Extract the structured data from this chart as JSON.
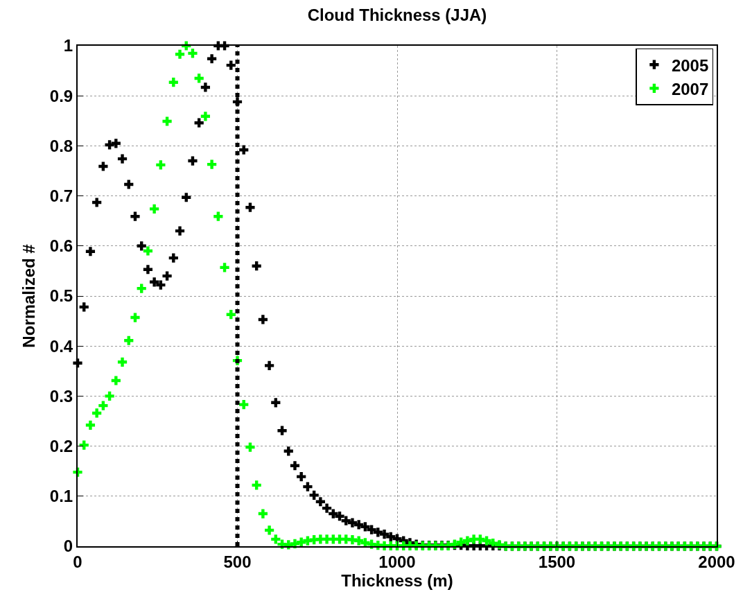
{
  "chart_data": {
    "type": "scatter",
    "title": "Cloud Thickness (JJA)",
    "xlabel": "Thickness (m)",
    "ylabel": "Normalized #",
    "x": [
      0,
      20,
      40,
      60,
      80,
      100,
      120,
      140,
      160,
      180,
      200,
      220,
      240,
      260,
      280,
      300,
      320,
      340,
      360,
      380,
      400,
      420,
      440,
      460,
      480,
      500,
      520,
      540,
      560,
      580,
      600,
      620,
      640,
      660,
      680,
      700,
      720,
      740,
      760,
      780,
      800,
      820,
      840,
      860,
      880,
      900,
      920,
      940,
      960,
      980,
      1000,
      1020,
      1040,
      1060,
      1080,
      1100,
      1120,
      1140,
      1160,
      1180,
      1200,
      1220,
      1240,
      1260,
      1280,
      1300,
      1320,
      1340,
      1360,
      1380,
      1400,
      1420,
      1440,
      1460,
      1480,
      1500,
      1520,
      1540,
      1560,
      1580,
      1600,
      1620,
      1640,
      1660,
      1680,
      1700,
      1720,
      1740,
      1760,
      1780,
      1800,
      1820,
      1840,
      1860,
      1880,
      1900,
      1920,
      1940,
      1960,
      1980,
      2000
    ],
    "series": [
      {
        "name": "2005",
        "color": "#000000",
        "values": [
          0.366,
          0.478,
          0.589,
          0.687,
          0.759,
          0.802,
          0.805,
          0.774,
          0.723,
          0.659,
          0.6,
          0.553,
          0.528,
          0.522,
          0.54,
          0.576,
          0.63,
          0.697,
          0.77,
          0.846,
          0.917,
          0.974,
          1.0,
          1.0,
          0.961,
          0.888,
          0.792,
          0.677,
          0.56,
          0.453,
          0.361,
          0.287,
          0.231,
          0.19,
          0.161,
          0.139,
          0.119,
          0.102,
          0.089,
          0.076,
          0.065,
          0.06,
          0.051,
          0.047,
          0.043,
          0.039,
          0.033,
          0.028,
          0.024,
          0.019,
          0.015,
          0.011,
          0.007,
          0.004,
          0.002,
          0.002,
          0.002,
          0.002,
          0.002,
          0.002,
          0.002,
          0.001,
          0.001,
          0.001,
          0.001,
          0.001,
          0.001,
          0,
          0,
          0,
          0,
          0,
          0,
          0,
          0,
          0,
          0,
          0,
          0,
          0,
          0,
          0,
          0,
          0,
          0,
          0,
          0,
          0,
          0,
          0,
          0,
          0,
          0,
          0,
          0,
          0,
          0,
          0,
          0,
          0,
          0
        ]
      },
      {
        "name": "2007",
        "color": "#00ff00",
        "values": [
          0.148,
          0.202,
          0.242,
          0.266,
          0.281,
          0.3,
          0.331,
          0.368,
          0.411,
          0.457,
          0.515,
          0.59,
          0.674,
          0.762,
          0.849,
          0.927,
          0.983,
          1.0,
          0.985,
          0.935,
          0.859,
          0.763,
          0.659,
          0.557,
          0.463,
          0.371,
          0.283,
          0.198,
          0.122,
          0.065,
          0.032,
          0.014,
          0.004,
          0.003,
          0.005,
          0.008,
          0.011,
          0.013,
          0.014,
          0.014,
          0.014,
          0.014,
          0.014,
          0.013,
          0.011,
          0.007,
          0.004,
          0.002,
          0.001,
          0.001,
          0.001,
          0.001,
          0.001,
          0.001,
          0.001,
          0.001,
          0.001,
          0.001,
          0.001,
          0.004,
          0.008,
          0.011,
          0.014,
          0.014,
          0.011,
          0.006,
          0.003,
          0,
          0,
          0,
          0,
          0,
          0,
          0,
          0,
          0,
          0,
          0,
          0,
          0,
          0,
          0,
          0,
          0,
          0,
          0,
          0,
          0,
          0,
          0,
          0,
          0,
          0,
          0,
          0,
          0,
          0,
          0,
          0,
          0,
          0
        ]
      }
    ],
    "xlim": [
      0,
      2000
    ],
    "xticks": [
      0,
      500,
      1000,
      1500,
      2000
    ],
    "ylim": [
      0,
      1
    ],
    "yticks": [
      0,
      0.1,
      0.2,
      0.3,
      0.4,
      0.5,
      0.6,
      0.7,
      0.8,
      0.9,
      1
    ],
    "ref_lines": [
      {
        "axis": "x",
        "value": 500,
        "color": "#000000",
        "line_style": "dotted"
      }
    ],
    "grid": true,
    "legend": "top right",
    "marker": "cross"
  }
}
